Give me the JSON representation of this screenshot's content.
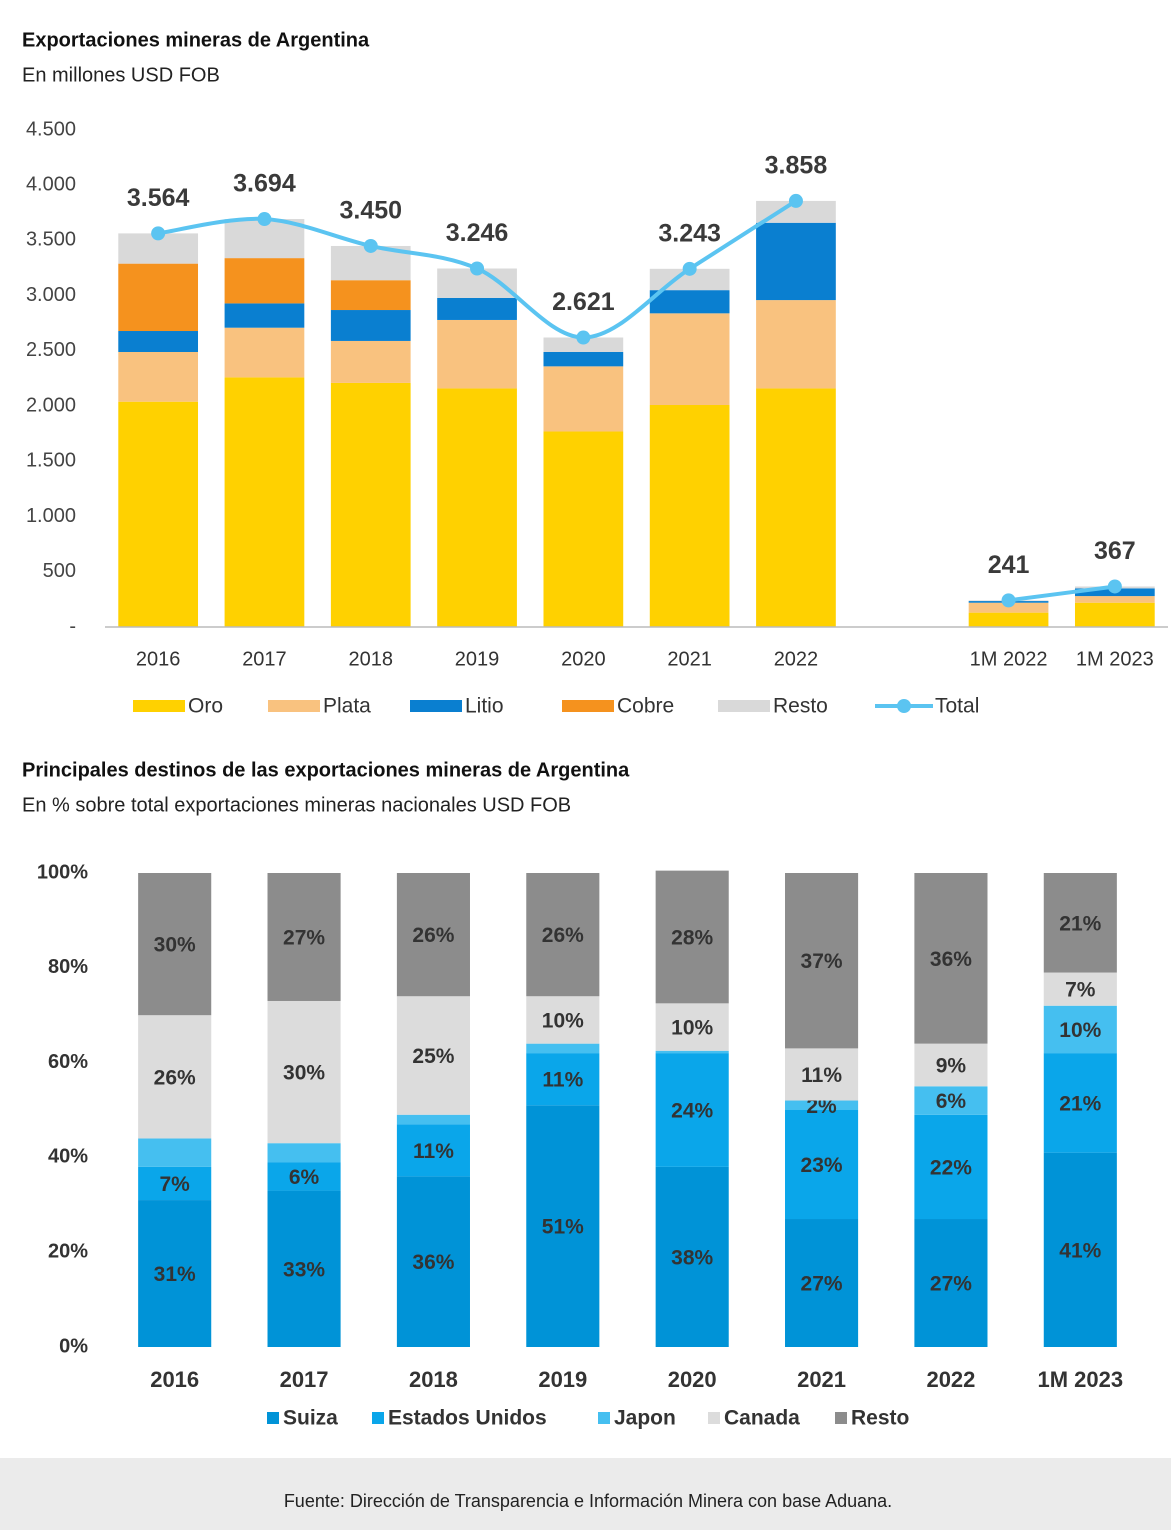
{
  "chart_data": [
    {
      "type": "bar",
      "stacked": true,
      "title": "Exportaciones mineras de Argentina",
      "subtitle": "En millones USD FOB",
      "categories": [
        "2016",
        "2017",
        "2018",
        "2019",
        "2020",
        "2021",
        "2022",
        null,
        "1M 2022",
        "1M 2023"
      ],
      "ylim": [
        0,
        4500
      ],
      "yticks": [
        {
          "value": 0,
          "label": "-"
        },
        500,
        {
          "value": 1000,
          "label": "1.000"
        },
        {
          "value": 1500,
          "label": "1.500"
        },
        {
          "value": 2000,
          "label": "2.000"
        },
        {
          "value": 2500,
          "label": "2.500"
        },
        {
          "value": 3000,
          "label": "3.000"
        },
        {
          "value": 3500,
          "label": "3.500"
        },
        {
          "value": 4000,
          "label": "4.000"
        },
        {
          "value": 4500,
          "label": "4.500"
        }
      ],
      "grid": false,
      "legend": "bottom",
      "series": [
        {
          "name": "Oro",
          "color": "#ffd100",
          "values": [
            2040,
            2260,
            2210,
            2160,
            1770,
            2010,
            2160,
            null,
            130,
            220
          ]
        },
        {
          "name": "Plata",
          "color": "#f9c27f",
          "values": [
            450,
            450,
            380,
            620,
            590,
            830,
            800,
            null,
            90,
            60
          ]
        },
        {
          "name": "Litio",
          "color": "#0a7fd0",
          "values": [
            190,
            220,
            280,
            200,
            130,
            210,
            700,
            null,
            15,
            70
          ]
        },
        {
          "name": "Cobre",
          "color": "#f5921e",
          "values": [
            610,
            410,
            270,
            0,
            0,
            0,
            0,
            null,
            0,
            0
          ]
        },
        {
          "name": "Resto",
          "color": "#d9d9d9",
          "values": [
            274,
            354,
            310,
            266,
            131,
            193,
            198,
            null,
            6,
            17
          ]
        },
        {
          "name": "Total",
          "type": "line",
          "smooth": true,
          "color": "#5bc4f1",
          "values": [
            3564,
            3694,
            3450,
            3246,
            2621,
            3243,
            3858,
            null,
            241,
            367
          ],
          "value_labels": [
            "3.564",
            "3.694",
            "3.450",
            "3.246",
            "2.621",
            "3.243",
            "3.858",
            null,
            "241",
            "367"
          ]
        }
      ]
    },
    {
      "type": "bar",
      "stacked": true,
      "title": "Principales destinos de las exportaciones mineras de Argentina",
      "subtitle": "En % sobre total exportaciones mineras nacionales USD FOB",
      "categories": [
        "2016",
        "2017",
        "2018",
        "2019",
        "2020",
        "2021",
        "2022",
        "1M 2023"
      ],
      "ylim": [
        0,
        100
      ],
      "yticks": [
        {
          "value": 0,
          "label": "0%"
        },
        {
          "value": 20,
          "label": "20%"
        },
        {
          "value": 40,
          "label": "40%"
        },
        {
          "value": 60,
          "label": "60%"
        },
        {
          "value": 80,
          "label": "80%"
        },
        {
          "value": 100,
          "label": "100%"
        }
      ],
      "grid": false,
      "legend": "bottom",
      "series": [
        {
          "name": "Suiza",
          "color": "#0093d7",
          "values": [
            31,
            33,
            36,
            51,
            38,
            27,
            27,
            41
          ],
          "value_labels": [
            "31%",
            "33%",
            "36%",
            "51%",
            "38%",
            "27%",
            "27%",
            "41%"
          ]
        },
        {
          "name": "Estados Unidos",
          "color": "#0aa6ea",
          "values": [
            7,
            6,
            11,
            11,
            24,
            23,
            22,
            21
          ],
          "value_labels": [
            "7%",
            "6%",
            "11%",
            "11%",
            "24%",
            "23%",
            "22%",
            "21%"
          ]
        },
        {
          "name": "Japon",
          "color": "#45bff0",
          "values": [
            6,
            4,
            2,
            2,
            0.5,
            2,
            6,
            10
          ],
          "value_labels": [
            null,
            null,
            null,
            null,
            null,
            "2%",
            "6%",
            "10%"
          ]
        },
        {
          "name": "Canada",
          "color": "#dcdcdc",
          "values": [
            26,
            30,
            25,
            10,
            10,
            11,
            9,
            7
          ],
          "value_labels": [
            "26%",
            "30%",
            "25%",
            "10%",
            "10%",
            "11%",
            "9%",
            "7%"
          ]
        },
        {
          "name": "Resto",
          "color": "#8c8c8c",
          "values": [
            30,
            27,
            26,
            26,
            28,
            37,
            36,
            21
          ],
          "value_labels": [
            "30%",
            "27%",
            "26%",
            "26%",
            "28%",
            "37%",
            "36%",
            "21%"
          ]
        }
      ]
    }
  ],
  "footer": {
    "source": "Fuente: Dirección de Transparencia e Información Minera con base Aduana."
  }
}
